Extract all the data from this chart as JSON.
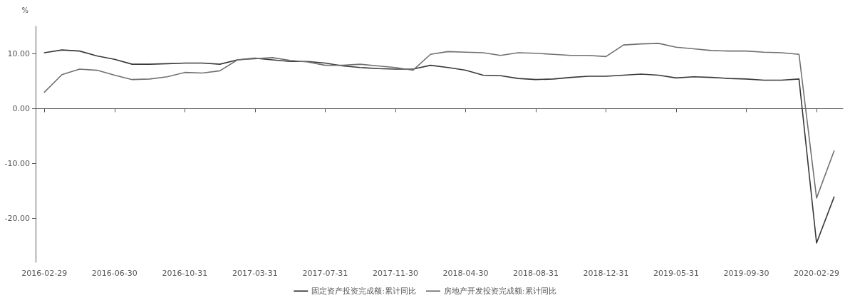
{
  "chart_data": {
    "type": "line",
    "ylabel": "%",
    "categories": [
      "2016-02-29",
      null,
      null,
      null,
      "2016-06-30",
      null,
      null,
      null,
      "2016-10-31",
      null,
      null,
      null,
      "2017-03-31",
      null,
      null,
      null,
      "2017-07-31",
      null,
      null,
      null,
      "2017-11-30",
      null,
      null,
      null,
      "2018-04-30",
      null,
      null,
      null,
      "2018-08-31",
      null,
      null,
      null,
      "2018-12-31",
      null,
      null,
      null,
      "2019-05-31",
      null,
      null,
      null,
      "2019-09-30",
      null,
      null,
      null,
      "2020-02-29",
      null
    ],
    "series": [
      {
        "name": "固定资产投资完成额:累计同比",
        "color": "#383838",
        "values": [
          10.2,
          10.7,
          10.5,
          9.6,
          9.0,
          8.1,
          8.1,
          8.2,
          8.3,
          8.3,
          8.1,
          8.9,
          9.2,
          8.9,
          8.6,
          8.6,
          8.3,
          7.8,
          7.5,
          7.3,
          7.2,
          7.2,
          7.9,
          7.5,
          7.0,
          6.1,
          6.0,
          5.5,
          5.3,
          5.4,
          5.7,
          5.9,
          5.9,
          6.1,
          6.3,
          6.1,
          5.6,
          5.8,
          5.7,
          5.5,
          5.4,
          5.2,
          5.2,
          5.4,
          -24.5,
          -16.1
        ]
      },
      {
        "name": "房地产开发投资完成额:累计同比",
        "color": "#707070",
        "values": [
          3.0,
          6.2,
          7.2,
          7.0,
          6.1,
          5.3,
          5.4,
          5.8,
          6.6,
          6.5,
          6.9,
          8.9,
          9.1,
          9.3,
          8.8,
          8.5,
          7.9,
          7.9,
          8.1,
          7.8,
          7.5,
          7.0,
          9.9,
          10.4,
          10.3,
          10.2,
          9.7,
          10.2,
          10.1,
          9.9,
          9.7,
          9.7,
          9.5,
          11.6,
          11.8,
          11.9,
          11.2,
          10.9,
          10.6,
          10.5,
          10.5,
          10.3,
          10.2,
          9.9,
          -16.3,
          -7.7
        ]
      }
    ],
    "ylim": [
      -28,
      15
    ],
    "yticks": [
      {
        "value": 10,
        "label": "10.00"
      },
      {
        "value": 0,
        "label": "0.00"
      },
      {
        "value": -10,
        "label": "-10.00"
      },
      {
        "value": -20,
        "label": "-20.00"
      }
    ],
    "legend": "bottom",
    "marker": "none",
    "line_style": "solid"
  }
}
